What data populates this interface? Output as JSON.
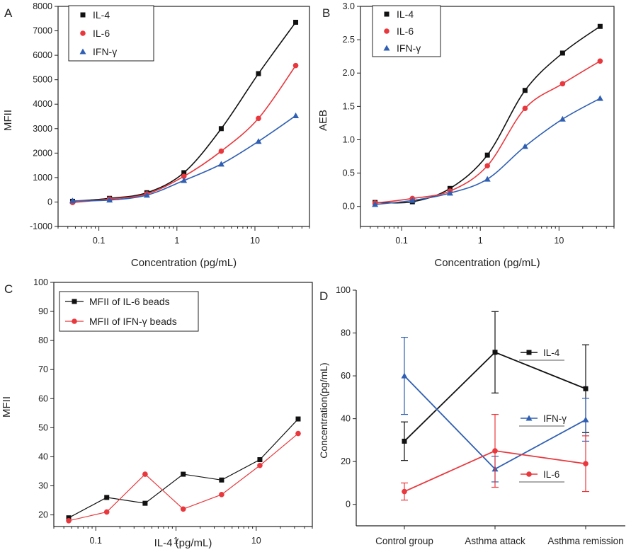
{
  "chart_data": [
    {
      "panel": "A",
      "type": "scatter",
      "xscale": "log",
      "x": [
        0.046,
        0.137,
        0.412,
        1.23,
        3.7,
        11.1,
        33.3
      ],
      "xticks": [
        0.1,
        1,
        10
      ],
      "xtick_labels": [
        "0.1",
        "1",
        "10"
      ],
      "xlim": [
        0.03,
        50
      ],
      "ylim": [
        -1000,
        8000
      ],
      "yticks": [
        -1000,
        0,
        1000,
        2000,
        3000,
        4000,
        5000,
        6000,
        7000,
        8000
      ],
      "ytick_labels": [
        "-1000",
        "0",
        "1000",
        "2000",
        "3000",
        "4000",
        "5000",
        "6000",
        "7000",
        "8000"
      ],
      "xlabel": "Concentration (pg/mL)",
      "ylabel": "MFII",
      "fit_curves": true,
      "series": [
        {
          "name": "IL-4",
          "marker": "square",
          "color": "#111111",
          "values": [
            30,
            150,
            380,
            1200,
            3000,
            5250,
            7350
          ]
        },
        {
          "name": "IL-6",
          "marker": "circle",
          "color": "#e8383d",
          "values": [
            -20,
            120,
            330,
            1050,
            2080,
            3420,
            5580
          ]
        },
        {
          "name": "IFN-γ",
          "marker": "triangle",
          "color": "#2f5fb3",
          "values": [
            50,
            80,
            280,
            880,
            1550,
            2480,
            3530
          ]
        }
      ]
    },
    {
      "panel": "B",
      "type": "scatter",
      "xscale": "log",
      "x": [
        0.046,
        0.137,
        0.412,
        1.23,
        3.7,
        11.1,
        33.3
      ],
      "xticks": [
        0.1,
        1,
        10
      ],
      "xtick_labels": [
        "0.1",
        "1",
        "10"
      ],
      "xlim": [
        0.03,
        50
      ],
      "ylim": [
        -0.3,
        3.0
      ],
      "yticks": [
        0.0,
        0.5,
        1.0,
        1.5,
        2.0,
        2.5,
        3.0
      ],
      "ytick_labels": [
        "0.0",
        "0.5",
        "1.0",
        "1.5",
        "2.0",
        "2.5",
        "3.0"
      ],
      "xlabel": "Concentration (pg/mL)",
      "ylabel": "AEB",
      "fit_curves": true,
      "series": [
        {
          "name": "IL-4",
          "marker": "square",
          "color": "#111111",
          "values": [
            0.06,
            0.07,
            0.27,
            0.77,
            1.74,
            2.3,
            2.7
          ]
        },
        {
          "name": "IL-6",
          "marker": "circle",
          "color": "#e8383d",
          "values": [
            0.05,
            0.12,
            0.23,
            0.61,
            1.47,
            1.84,
            2.18
          ]
        },
        {
          "name": "IFN-γ",
          "marker": "triangle",
          "color": "#2f5fb3",
          "values": [
            0.03,
            0.09,
            0.2,
            0.41,
            0.9,
            1.31,
            1.62
          ]
        }
      ]
    },
    {
      "panel": "C",
      "type": "line",
      "xscale": "log",
      "x": [
        0.046,
        0.137,
        0.412,
        1.23,
        3.7,
        11.1,
        33.3
      ],
      "xticks": [
        0.1,
        1,
        10
      ],
      "xtick_labels": [
        "0.1",
        "1",
        "10"
      ],
      "xlim": [
        0.03,
        50
      ],
      "ylim": [
        16,
        100
      ],
      "yticks": [
        20,
        30,
        40,
        50,
        60,
        70,
        80,
        90,
        100
      ],
      "ytick_labels": [
        "20",
        "30",
        "40",
        "50",
        "60",
        "70",
        "80",
        "90",
        "100"
      ],
      "xlabel": "IL-4 (pg/mL)",
      "ylabel": "MFII",
      "series": [
        {
          "name": "MFII of IL-6 beads",
          "marker": "square",
          "color": "#111111",
          "values": [
            19,
            26,
            24,
            34,
            32,
            39,
            53
          ]
        },
        {
          "name": "MFII of IFN-γ beads",
          "marker": "circle",
          "color": "#e8383d",
          "values": [
            18,
            21,
            34,
            22,
            27,
            37,
            48
          ]
        }
      ]
    },
    {
      "panel": "D",
      "type": "line",
      "categories": [
        "Control group",
        "Asthma attack",
        "Asthma remission"
      ],
      "ylim": [
        -10,
        100
      ],
      "yticks": [
        0,
        20,
        40,
        60,
        80,
        100
      ],
      "ytick_labels": [
        "0",
        "20",
        "40",
        "60",
        "80",
        "100"
      ],
      "xlabel": "",
      "ylabel": "Concentration(pg/mL)",
      "series": [
        {
          "name": "IL-4",
          "marker": "square",
          "color": "#111111",
          "values": [
            29.5,
            71,
            54
          ],
          "errors": [
            9,
            19,
            20.5
          ]
        },
        {
          "name": "IFN-γ",
          "marker": "triangle",
          "color": "#2f5fb3",
          "values": [
            60,
            16.5,
            39.5
          ],
          "errors": [
            18,
            6,
            10
          ]
        },
        {
          "name": "IL-6",
          "marker": "circle",
          "color": "#e8383d",
          "values": [
            6,
            25,
            19
          ],
          "errors": [
            4,
            17,
            13
          ]
        }
      ]
    }
  ]
}
